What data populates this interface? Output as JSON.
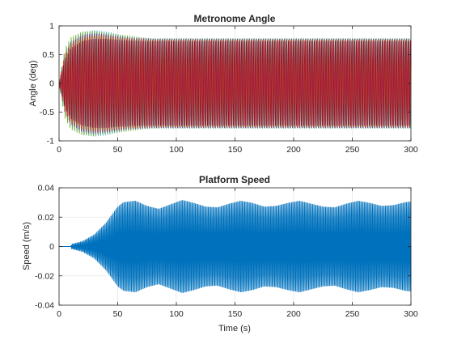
{
  "chart_data": [
    {
      "type": "line",
      "title": "Metronome Angle",
      "xlabel": "",
      "ylabel": "Angle (deg)",
      "xlim": [
        0,
        300
      ],
      "ylim": [
        -1,
        1
      ],
      "xticks": [
        0,
        50,
        100,
        150,
        200,
        250,
        300
      ],
      "yticks": [
        -1,
        -0.5,
        0,
        0.5,
        1
      ],
      "grid": true,
      "oscillation_period_s": 2.0,
      "series": [
        {
          "color": "#4dbeee",
          "envelope": {
            "t": [
              0,
              5,
              10,
              20,
              30,
              40,
              50,
              60,
              70,
              80,
              100,
              300
            ],
            "amplitude": [
              0.02,
              0.55,
              0.75,
              0.88,
              0.92,
              0.9,
              0.85,
              0.8,
              0.79,
              0.78,
              0.78,
              0.78
            ]
          }
        },
        {
          "color": "#77ac30",
          "envelope": {
            "t": [
              0,
              5,
              10,
              20,
              30,
              40,
              50,
              60,
              70,
              80,
              100,
              300
            ],
            "amplitude": [
              0.02,
              0.6,
              0.8,
              0.9,
              0.91,
              0.88,
              0.85,
              0.83,
              0.8,
              0.78,
              0.78,
              0.78
            ]
          }
        },
        {
          "color": "#7e2f8e",
          "envelope": {
            "t": [
              0,
              5,
              10,
              20,
              30,
              40,
              50,
              60,
              70,
              80,
              100,
              300
            ],
            "amplitude": [
              0.02,
              0.5,
              0.72,
              0.85,
              0.88,
              0.86,
              0.83,
              0.8,
              0.79,
              0.78,
              0.78,
              0.78
            ]
          }
        },
        {
          "color": "#d95319",
          "envelope": {
            "t": [
              0,
              5,
              10,
              20,
              30,
              40,
              50,
              60,
              70,
              80,
              100,
              300
            ],
            "amplitude": [
              0.02,
              0.52,
              0.7,
              0.82,
              0.86,
              0.85,
              0.82,
              0.8,
              0.79,
              0.78,
              0.78,
              0.78
            ]
          }
        },
        {
          "color": "#a2142f",
          "envelope": {
            "t": [
              0,
              5,
              10,
              20,
              30,
              40,
              50,
              60,
              70,
              80,
              100,
              300
            ],
            "amplitude": [
              0.02,
              0.45,
              0.65,
              0.78,
              0.82,
              0.82,
              0.8,
              0.79,
              0.78,
              0.78,
              0.78,
              0.78
            ]
          }
        }
      ]
    },
    {
      "type": "line",
      "title": "Platform Speed",
      "xlabel": "Time (s)",
      "ylabel": "Speed (m/s)",
      "xlim": [
        0,
        300
      ],
      "ylim": [
        -0.04,
        0.04
      ],
      "xticks": [
        0,
        50,
        100,
        150,
        200,
        250,
        300
      ],
      "yticks": [
        -0.04,
        -0.02,
        0,
        0.02,
        0.04
      ],
      "grid": true,
      "oscillation_period_s": 1.0,
      "series": [
        {
          "color": "#0072bd",
          "envelope": {
            "t": [
              0,
              10,
              10.5,
              20,
              30,
              40,
              50,
              55,
              65,
              75,
              85,
              95,
              105,
              115,
              125,
              135,
              145,
              155,
              165,
              175,
              185,
              195,
              205,
              215,
              225,
              235,
              245,
              255,
              265,
              275,
              285,
              295,
              300
            ],
            "amplitude": [
              0,
              0,
              0.0015,
              0.0035,
              0.008,
              0.016,
              0.027,
              0.03,
              0.031,
              0.0275,
              0.0255,
              0.0285,
              0.0315,
              0.0295,
              0.027,
              0.0265,
              0.029,
              0.031,
              0.0295,
              0.027,
              0.0275,
              0.0295,
              0.031,
              0.029,
              0.027,
              0.0265,
              0.029,
              0.031,
              0.0295,
              0.0275,
              0.028,
              0.03,
              0.0305
            ]
          }
        }
      ]
    }
  ]
}
